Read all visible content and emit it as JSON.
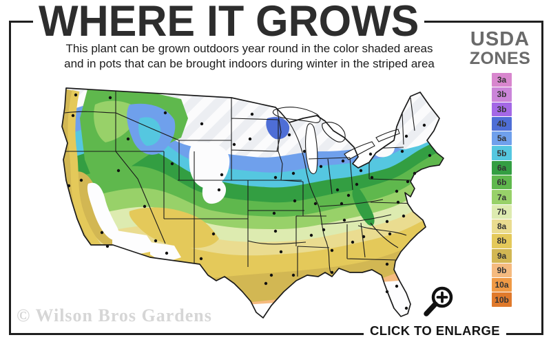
{
  "header": {
    "title": "WHERE IT GROWS",
    "subtitle_line1": "This plant can be grown outdoors year round in the color shaded areas",
    "subtitle_line2": "and in pots that can be brought indoors during winter in the striped area"
  },
  "legend": {
    "title_line1": "USDA",
    "title_line2": "ZONES",
    "zones": [
      {
        "label": "3a",
        "color": "#D886CE"
      },
      {
        "label": "3b",
        "color": "#CB85D9"
      },
      {
        "label": "3b",
        "color": "#A468E6"
      },
      {
        "label": "4b",
        "color": "#4E6ED6"
      },
      {
        "label": "5a",
        "color": "#6FA0EC"
      },
      {
        "label": "5b",
        "color": "#55C7E0"
      },
      {
        "label": "6a",
        "color": "#339E42"
      },
      {
        "label": "6b",
        "color": "#5FB84D"
      },
      {
        "label": "7a",
        "color": "#98D169"
      },
      {
        "label": "7b",
        "color": "#DDEBB0"
      },
      {
        "label": "8a",
        "color": "#EADC90"
      },
      {
        "label": "8b",
        "color": "#E4C95A"
      },
      {
        "label": "9a",
        "color": "#D2B753"
      },
      {
        "label": "9b",
        "color": "#F5BA7F"
      },
      {
        "label": "10a",
        "color": "#F09A45"
      },
      {
        "label": "10b",
        "color": "#E07A2C"
      }
    ]
  },
  "map": {
    "region": "Continental United States",
    "marker_color": "#111111",
    "border_color": "#1a1a1a",
    "unshaded_color": "#fdfdfe"
  },
  "footer": {
    "watermark": "© Wilson Bros Gardens",
    "enlarge_label": "CLICK TO ENLARGE",
    "enlarge_icon": "magnifier-plus-icon"
  }
}
